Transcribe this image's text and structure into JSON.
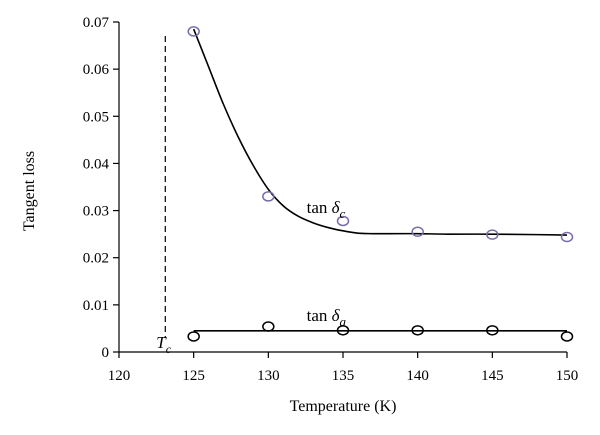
{
  "chart_data": {
    "type": "scatter",
    "xlabel": "Temperature (K)",
    "ylabel": "Tangent loss",
    "xlim": [
      120,
      150
    ],
    "ylim": [
      0,
      0.07
    ],
    "x_ticks": [
      120,
      125,
      130,
      135,
      140,
      145,
      150
    ],
    "x_tick_labels": [
      "120",
      "125",
      "130",
      "135",
      "140",
      "145",
      "150"
    ],
    "y_ticks": [
      0,
      0.01,
      0.02,
      0.03,
      0.04,
      0.05,
      0.06,
      0.07
    ],
    "y_tick_labels": [
      "0",
      "0.01",
      "0.02",
      "0.03",
      "0.04",
      "0.05",
      "0.06",
      "0.07"
    ],
    "grid": false,
    "series": [
      {
        "name": "tan δ_c",
        "marker": "open-circle",
        "marker_color": "#7a6aa8",
        "line_color": "#000000",
        "x": [
          125,
          130,
          135,
          140,
          145,
          150
        ],
        "y": [
          0.068,
          0.033,
          0.0278,
          0.0255,
          0.0249,
          0.0244
        ],
        "fit_curve": {
          "x": [
            125,
            126,
            127,
            128,
            129,
            130,
            131,
            132,
            133,
            134,
            135,
            136,
            137,
            138,
            140,
            142,
            145,
            148,
            150
          ],
          "y": [
            0.0685,
            0.0605,
            0.0525,
            0.0455,
            0.0395,
            0.0345,
            0.031,
            0.0288,
            0.0274,
            0.0264,
            0.0257,
            0.0252,
            0.0251,
            0.0251,
            0.0251,
            0.025,
            0.025,
            0.0249,
            0.0248
          ]
        }
      },
      {
        "name": "tan δ_a",
        "marker": "open-circle",
        "marker_color": "#000000",
        "line_color": "#000000",
        "x": [
          125,
          130,
          135,
          140,
          145,
          150
        ],
        "y": [
          0.0033,
          0.0054,
          0.0046,
          0.0046,
          0.0046,
          0.0033
        ],
        "fit_curve": {
          "x": [
            125,
            150
          ],
          "y": [
            0.0045,
            0.0045
          ]
        }
      }
    ],
    "annotations": {
      "tan_c": {
        "text": "tan",
        "symbol": "δ",
        "subscript": "c",
        "x": 133.5,
        "y": 0.0295
      },
      "tan_a": {
        "text": "tan",
        "symbol": "δ",
        "subscript": "a",
        "x": 133.5,
        "y": 0.0066
      },
      "tc": {
        "text": "T",
        "subscript": "c",
        "x": 123.1
      }
    },
    "vertical_line": {
      "x": 123.1,
      "style": "dashed"
    }
  }
}
